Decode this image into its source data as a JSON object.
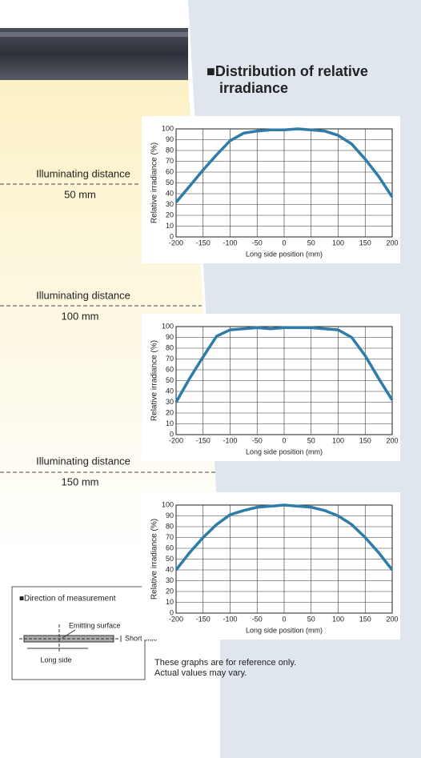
{
  "header": {
    "title": "■Distribution of relative irradiance"
  },
  "distances": [
    {
      "label": "Illuminating distance",
      "value": "50 mm"
    },
    {
      "label": "Illuminating distance",
      "value": "100 mm"
    },
    {
      "label": "Illuminating distance",
      "value": "150 mm"
    }
  ],
  "chart_data": [
    {
      "type": "line",
      "xlabel": "Long side position (mm)",
      "ylabel": "Relative irradiance (%)",
      "x": [
        -200,
        -175,
        -150,
        -125,
        -100,
        -75,
        -50,
        -25,
        0,
        25,
        50,
        75,
        100,
        125,
        150,
        175,
        200
      ],
      "series": [
        {
          "color": "#2e7ca8",
          "values": [
            32,
            47,
            62,
            76,
            89,
            96,
            98,
            99,
            99,
            100,
            99,
            98,
            94,
            86,
            72,
            56,
            37
          ]
        }
      ],
      "xlim": [
        -200,
        200
      ],
      "xticks": [
        -200,
        -150,
        -100,
        -50,
        0,
        50,
        100,
        150,
        200
      ],
      "ylim": [
        0,
        100
      ],
      "yticks": [
        0,
        10,
        20,
        30,
        40,
        50,
        60,
        70,
        80,
        90,
        100
      ],
      "grid": true
    },
    {
      "type": "line",
      "xlabel": "Long side position (mm)",
      "ylabel": "Relative irradiance (%)",
      "x": [
        -200,
        -175,
        -150,
        -125,
        -100,
        -75,
        -50,
        -25,
        0,
        25,
        50,
        75,
        100,
        125,
        150,
        175,
        200
      ],
      "series": [
        {
          "color": "#2e7ca8",
          "values": [
            30,
            52,
            72,
            91,
            97,
            98,
            99,
            98,
            99,
            99,
            99,
            98,
            97,
            90,
            73,
            52,
            32
          ]
        }
      ],
      "xlim": [
        -200,
        200
      ],
      "xticks": [
        -200,
        -150,
        -100,
        -50,
        0,
        50,
        100,
        150,
        200
      ],
      "ylim": [
        0,
        100
      ],
      "yticks": [
        0,
        10,
        20,
        30,
        40,
        50,
        60,
        70,
        80,
        90,
        100
      ],
      "grid": true
    },
    {
      "type": "line",
      "xlabel": "Long side position (mm)",
      "ylabel": "Relative irradiance (%)",
      "x": [
        -200,
        -175,
        -150,
        -125,
        -100,
        -75,
        -50,
        -25,
        0,
        25,
        50,
        75,
        100,
        125,
        150,
        175,
        200
      ],
      "series": [
        {
          "color": "#2e7ca8",
          "values": [
            40,
            56,
            70,
            82,
            91,
            95,
            98,
            99,
            100,
            99,
            98,
            95,
            90,
            82,
            70,
            56,
            40
          ]
        }
      ],
      "xlim": [
        -200,
        200
      ],
      "xticks": [
        -200,
        -150,
        -100,
        -50,
        0,
        50,
        100,
        150,
        200
      ],
      "ylim": [
        0,
        100
      ],
      "yticks": [
        0,
        10,
        20,
        30,
        40,
        50,
        60,
        70,
        80,
        90,
        100
      ],
      "grid": true
    }
  ],
  "measurement": {
    "title": "■Direction of measurement",
    "emitting": "Emitting surface",
    "short": "Short side",
    "long": "Long side"
  },
  "note": {
    "lines": [
      "These graphs are for reference only.",
      "Actual values may vary."
    ]
  }
}
